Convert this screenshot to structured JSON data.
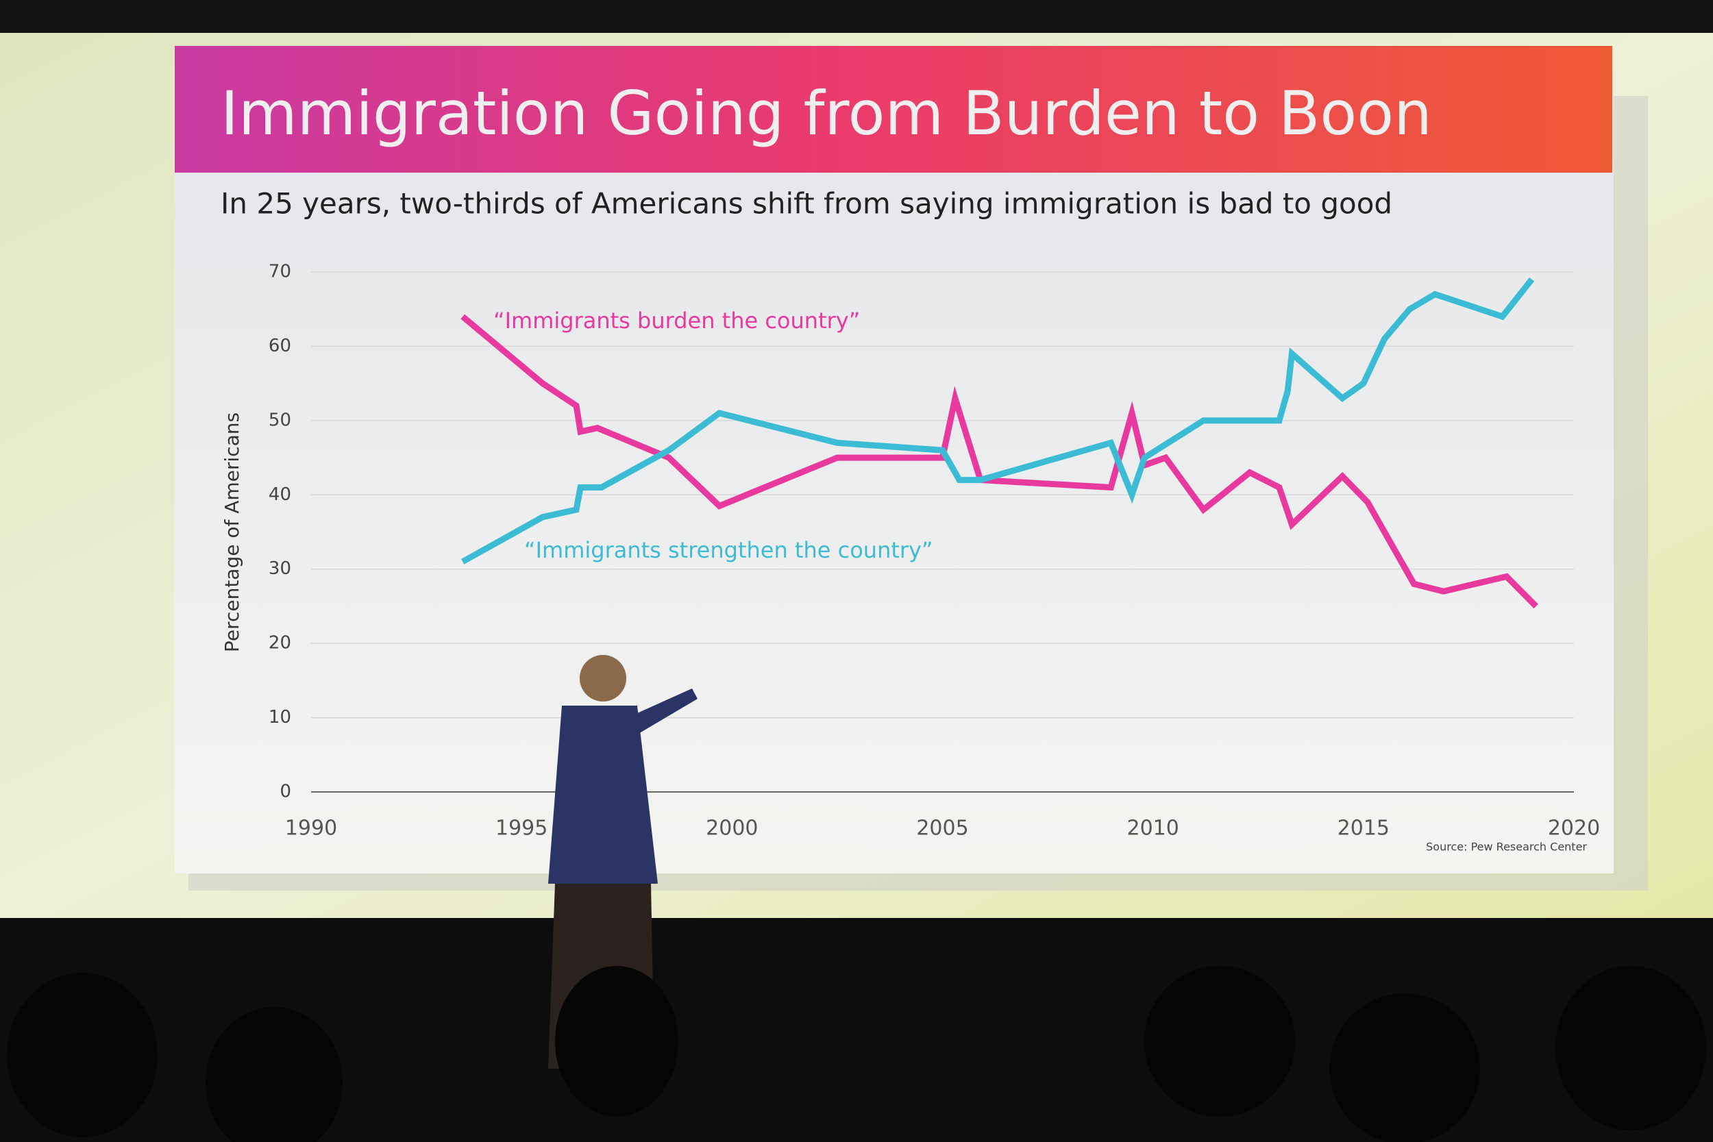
{
  "chart_data": {
    "type": "line",
    "title": "Immigration Going from Burden to Boon",
    "subtitle": "In 25 years, two-thirds of Americans shift from saying immigration is bad to good",
    "y_label": "Percentage of Americans",
    "source": "Source: Pew Research Center",
    "xlim": [
      1990,
      2020
    ],
    "xticks": [
      1990,
      1995,
      2000,
      2005,
      2010,
      2015,
      2020
    ],
    "ylim": [
      0,
      70
    ],
    "yticks": [
      0,
      10,
      20,
      30,
      40,
      50,
      60,
      70
    ],
    "grid": true,
    "series": [
      {
        "name": "“Immigrants burden the country”",
        "color": "#e8399e",
        "x": [
          1993.6,
          1995.5,
          1996.3,
          1996.4,
          1996.8,
          1998.5,
          1999.7,
          2002.5,
          2005.0,
          2005.3,
          2005.9,
          2009.0,
          2009.5,
          2009.8,
          2010.3,
          2011.2,
          2012.3,
          2013.0,
          2013.3,
          2014.5,
          2015.1,
          2016.2,
          2016.9,
          2018.4,
          2019.1
        ],
        "values": [
          64,
          55,
          52,
          48.5,
          49,
          45,
          38.5,
          45,
          45,
          53,
          42,
          41,
          51,
          44,
          45,
          38,
          43,
          41,
          36,
          42.5,
          39,
          28,
          27,
          29,
          25
        ]
      },
      {
        "name": "“Immigrants strengthen the country”",
        "color": "#3bbcd4",
        "x": [
          1993.6,
          1995.5,
          1996.3,
          1996.4,
          1996.9,
          1998.5,
          1999.7,
          2002.5,
          2005.0,
          2005.4,
          2005.9,
          2009.0,
          2009.5,
          2009.8,
          2011.2,
          2012.3,
          2013.0,
          2013.2,
          2013.3,
          2014.5,
          2015.0,
          2015.5,
          2016.1,
          2016.7,
          2018.3,
          2019.0
        ],
        "values": [
          31,
          37,
          38,
          41,
          41,
          46,
          51,
          47,
          46,
          42,
          42,
          47,
          40,
          45,
          50,
          50,
          50,
          54,
          59,
          53,
          55,
          61,
          65,
          67,
          64,
          69
        ]
      }
    ]
  }
}
